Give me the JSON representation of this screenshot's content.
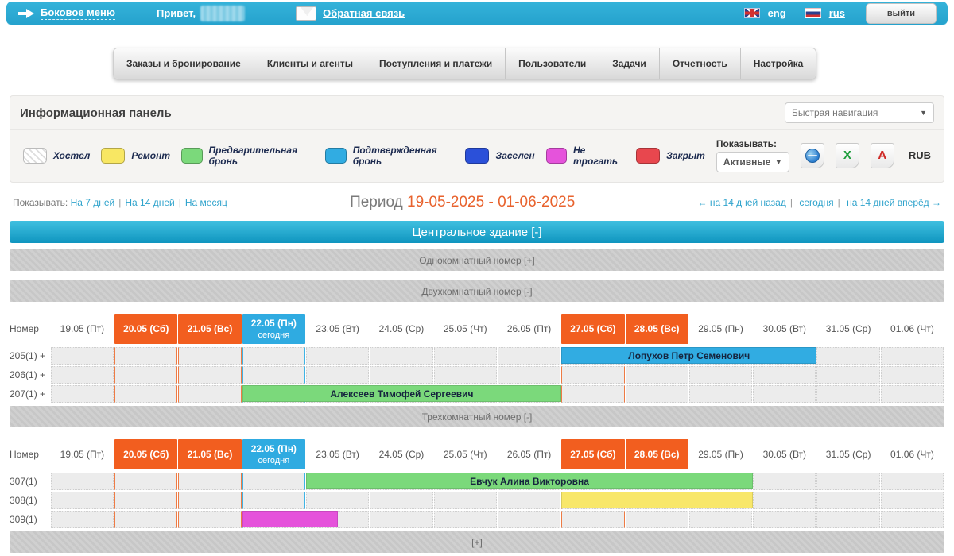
{
  "topbar": {
    "side_menu": "Боковое меню",
    "greeting": "Привет,",
    "feedback": "Обратная связь",
    "lang_eng": "eng",
    "lang_rus": "rus",
    "logout": "выйти"
  },
  "tabs": [
    "Заказы и бронирование",
    "Клиенты и агенты",
    "Поступления и платежи",
    "Пользователи",
    "Задачи",
    "Отчетность",
    "Настройка"
  ],
  "panel": {
    "title": "Информационная панель",
    "quick_nav": "Быстрая навигация"
  },
  "legend": [
    {
      "label": "Хостел",
      "swatch": "hatch"
    },
    {
      "label": "Ремонт",
      "swatch": "#f8e763"
    },
    {
      "label": "Предварительная бронь",
      "swatch": "#7bd97b"
    },
    {
      "label": "Подтвержденная бронь",
      "swatch": "#31ace2"
    },
    {
      "label": "Заселен",
      "swatch": "#2b50d9"
    },
    {
      "label": "Не трогать",
      "swatch": "#e553db"
    },
    {
      "label": "Закрыт",
      "swatch": "#e8474e"
    }
  ],
  "controls": {
    "show_label": "Показывать:",
    "filter_value": "Активные",
    "currency": "RUB",
    "icons": [
      "html-export-icon",
      "excel-export-icon",
      "pdf-export-icon"
    ]
  },
  "period": {
    "show_label": "Показывать:",
    "ranges": [
      "На 7 дней",
      "На 14 дней",
      "На месяц"
    ],
    "label": "Период",
    "value": "19-05-2025 - 01-06-2025",
    "nav_back": "← на 14 дней назад",
    "nav_today": "сегодня",
    "nav_forward": "на 14 дней вперёд →"
  },
  "building": {
    "title": "Центральное здание [-]"
  },
  "section_bars": {
    "one_room": "Однокомнатный номер [+]",
    "two_room": "Двухкомнатный номер [-]",
    "three_room": "Трехкомнатный номер [-]",
    "expand": "[+]"
  },
  "colors": {
    "accent": "#2baad2",
    "weekend": "#f25e1f",
    "today": "#2fabe1",
    "period_value": "#e8622d"
  },
  "grid": {
    "corner_label": "Номер",
    "today_label": "сегодня",
    "days": [
      {
        "date": "19.05",
        "dow": "(Пт)",
        "type": "normal"
      },
      {
        "date": "20.05",
        "dow": "(Сб)",
        "type": "weekend"
      },
      {
        "date": "21.05",
        "dow": "(Вс)",
        "type": "weekend"
      },
      {
        "date": "22.05",
        "dow": "(Пн)",
        "type": "today"
      },
      {
        "date": "23.05",
        "dow": "(Вт)",
        "type": "normal"
      },
      {
        "date": "24.05",
        "dow": "(Ср)",
        "type": "normal"
      },
      {
        "date": "25.05",
        "dow": "(Чт)",
        "type": "normal"
      },
      {
        "date": "26.05",
        "dow": "(Пт)",
        "type": "normal"
      },
      {
        "date": "27.05",
        "dow": "(Сб)",
        "type": "weekend"
      },
      {
        "date": "28.05",
        "dow": "(Вс)",
        "type": "weekend"
      },
      {
        "date": "29.05",
        "dow": "(Пн)",
        "type": "normal"
      },
      {
        "date": "30.05",
        "dow": "(Вт)",
        "type": "normal"
      },
      {
        "date": "31.05",
        "dow": "(Ср)",
        "type": "normal"
      },
      {
        "date": "01.06",
        "dow": "(Чт)",
        "type": "normal"
      }
    ],
    "sections": [
      {
        "name": "two-room-grid",
        "rooms": [
          {
            "label": "205(1) +",
            "bookings": [
              {
                "name": "Лопухов Петр Семенович",
                "color": "#31ace2",
                "start": 9,
                "span": 4
              }
            ]
          },
          {
            "label": "206(1) +",
            "bookings": []
          },
          {
            "label": "207(1) +",
            "bookings": [
              {
                "name": "Алексеев Тимофей Сергеевич",
                "color": "#7bd97b",
                "start": 4,
                "span": 5
              }
            ]
          }
        ]
      },
      {
        "name": "three-room-grid",
        "rooms": [
          {
            "label": "307(1)",
            "bookings": [
              {
                "name": "Евчук Алина Викторовна",
                "color": "#7bd97b",
                "start": 5,
                "span": 7
              }
            ]
          },
          {
            "label": "308(1)",
            "bookings": [
              {
                "name": "",
                "color": "#f8e76a",
                "start": 9,
                "span": 3
              }
            ]
          },
          {
            "label": "309(1)",
            "bookings": [
              {
                "name": "",
                "color": "#e553db",
                "start": 4,
                "span": 1.5
              }
            ]
          }
        ]
      }
    ]
  }
}
